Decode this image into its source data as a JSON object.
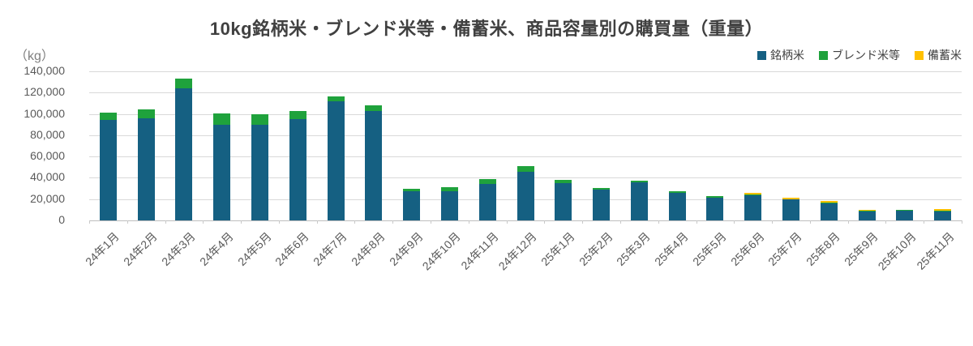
{
  "title": "10kg銘柄米・ブレンド米等・備蓄米、商品容量別の購買量（重量）",
  "y_axis_unit": "（kg）",
  "colors": {
    "meigara": "#156082",
    "blend": "#1fa23c",
    "bichiku": "#ffc000",
    "grid": "#d9d9d9",
    "axis": "#bfbfbf",
    "tick_text": "#595959",
    "title_text": "#404040"
  },
  "legend": {
    "position": "top-right",
    "items": [
      "銘柄米",
      "ブレンド米等",
      "備蓄米"
    ]
  },
  "chart_data": {
    "type": "bar",
    "stacked": true,
    "title": "10kg銘柄米・ブレンド米等・備蓄米、商品容量別の購買量（重量）",
    "xlabel": "",
    "ylabel": "（kg）",
    "ylim": [
      0,
      140000
    ],
    "yticks": [
      0,
      20000,
      40000,
      60000,
      80000,
      100000,
      120000,
      140000
    ],
    "ytick_labels": [
      "0",
      "20,000",
      "40,000",
      "60,000",
      "80,000",
      "100,000",
      "120,000",
      "140,000"
    ],
    "grid": true,
    "legend_position": "top-right",
    "categories": [
      "24年1月",
      "24年2月",
      "24年3月",
      "24年4月",
      "24年5月",
      "24年6月",
      "24年7月",
      "24年8月",
      "24年9月",
      "24年10月",
      "24年11月",
      "24年12月",
      "25年1月",
      "25年2月",
      "25年3月",
      "25年4月",
      "25年5月",
      "25年6月",
      "25年7月",
      "25年8月",
      "25年9月",
      "25年10月",
      "25年11月"
    ],
    "series": [
      {
        "name": "銘柄米",
        "color": "#156082",
        "values": [
          94000,
          96000,
          124000,
          90000,
          89500,
          95000,
          112000,
          103000,
          27500,
          27500,
          34500,
          45500,
          35000,
          29000,
          35500,
          26000,
          21500,
          24000,
          20000,
          16800,
          8800,
          8800,
          8700
        ]
      },
      {
        "name": "ブレンド米等",
        "color": "#1fa23c",
        "values": [
          7500,
          8500,
          9500,
          10500,
          10000,
          7500,
          4500,
          5000,
          1800,
          3700,
          4200,
          5600,
          3200,
          1800,
          1500,
          1500,
          1500,
          700,
          0,
          300,
          300,
          800,
          800
        ]
      },
      {
        "name": "備蓄米",
        "color": "#ffc000",
        "values": [
          0,
          0,
          0,
          0,
          0,
          0,
          0,
          0,
          0,
          0,
          0,
          0,
          0,
          0,
          0,
          0,
          0,
          1200,
          1300,
          1400,
          1000,
          0,
          800
        ]
      }
    ]
  }
}
